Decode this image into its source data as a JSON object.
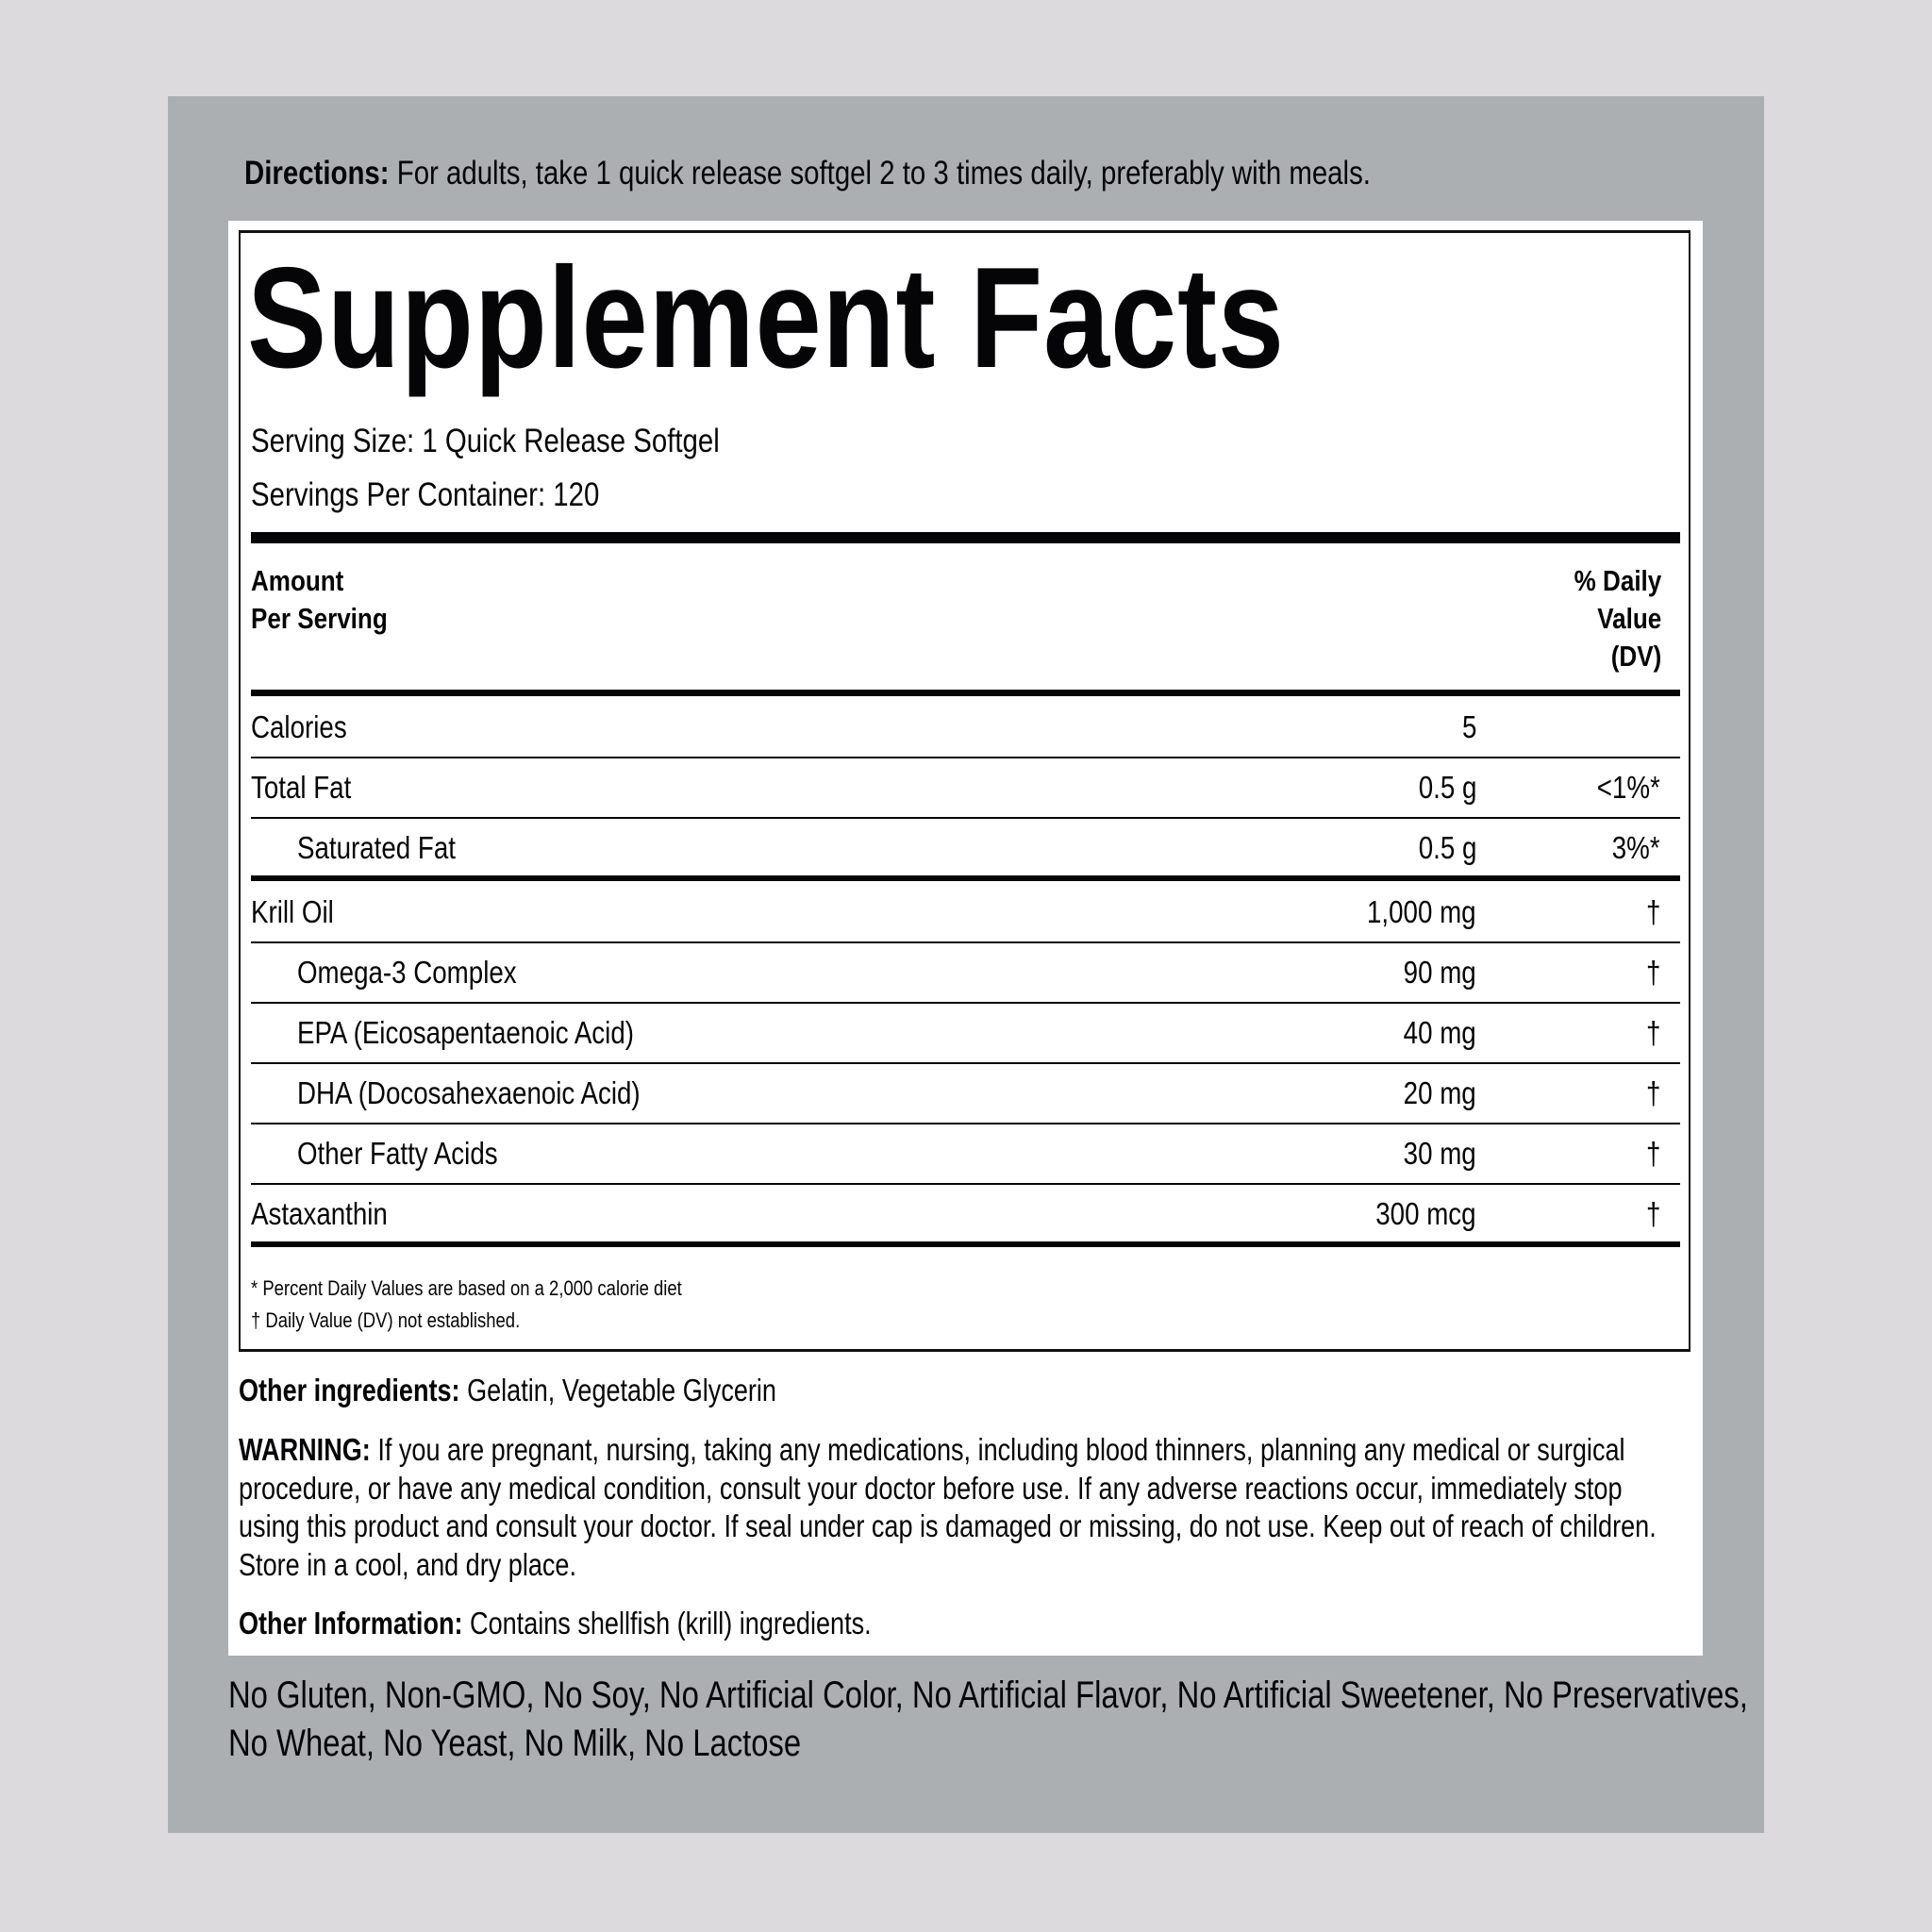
{
  "directions": {
    "label": "Directions:",
    "text": " For adults, take 1 quick release softgel 2 to 3 times daily, preferably with meals."
  },
  "title": "Supplement Facts",
  "serving_size": "Serving Size: 1 Quick Release Softgel",
  "servings_per_container": "Servings Per Container: 120",
  "header": {
    "amount_line1": "Amount",
    "amount_line2": "Per Serving",
    "dv_line1": "% Daily",
    "dv_line2": "Value",
    "dv_line3": "(DV)"
  },
  "rows": [
    {
      "name": "Calories",
      "amount": "5",
      "dv": ""
    },
    {
      "name": "Total Fat",
      "amount": "0.5 g",
      "dv": "<1%*"
    },
    {
      "name": "Saturated Fat",
      "amount": "0.5 g",
      "dv": "3%*"
    },
    {
      "name": "Krill Oil",
      "amount": "1,000 mg",
      "dv": "†"
    },
    {
      "name": "Omega-3 Complex",
      "amount": "90 mg",
      "dv": "†"
    },
    {
      "name": "EPA (Eicosapentaenoic Acid)",
      "amount": "40 mg",
      "dv": "†"
    },
    {
      "name": "DHA (Docosahexaenoic Acid)",
      "amount": "20 mg",
      "dv": "†"
    },
    {
      "name": "Other Fatty Acids",
      "amount": "30 mg",
      "dv": "†"
    },
    {
      "name": "Astaxanthin",
      "amount": "300 mcg",
      "dv": "†"
    }
  ],
  "footnotes": [
    "* Percent Daily Values are based on a 2,000 calorie diet",
    "† Daily Value (DV) not established."
  ],
  "other_ingredients": {
    "label": "Other ingredients:",
    "text": " Gelatin, Vegetable Glycerin"
  },
  "warning": {
    "label": "WARNING:",
    "text": " If you are pregnant, nursing, taking any medications, including blood thinners, planning any medical or surgical procedure, or have any medical condition, consult your doctor before use. If any adverse reactions occur, immediately stop using this product and consult your doctor. If seal under cap is damaged or missing, do not use. Keep out of reach of children. Store in a cool, and dry place."
  },
  "other_information": {
    "label": "Other Information:",
    "text": " Contains shellfish (krill) ingredients."
  },
  "free_from": "No Gluten, Non-GMO, No Soy, No Artificial Color, No Artificial Flavor, No Artificial Sweetener, No Preservatives, No Wheat, No Yeast, No Milk, No Lactose",
  "colors": {
    "page_bg": "#dcdadd",
    "panel": "#abafb2",
    "label_bg": "#ffffff",
    "ink": "#050507"
  }
}
